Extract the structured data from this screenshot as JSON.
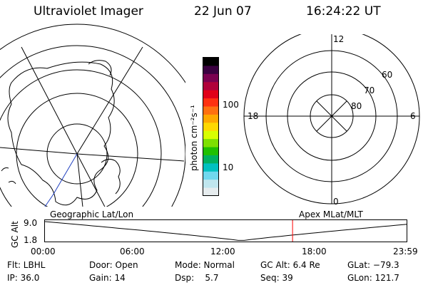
{
  "header": {
    "instrument": "Ultraviolet Imager",
    "date": "22 Jun 07",
    "time": "16:24:22 UT"
  },
  "geo_map": {
    "caption": "Geographic Lat/Lon"
  },
  "polar_plot": {
    "caption": "Apex MLat/MLT",
    "mlt_labels": {
      "top": "12",
      "bottom": "0",
      "left": "18",
      "right": "6"
    },
    "lat_labels": [
      "60",
      "70",
      "80"
    ]
  },
  "colorbar": {
    "unit_label": "photon cm⁻²s⁻¹",
    "tick_labels": [
      "100",
      "10"
    ],
    "colors": [
      "#000000",
      "#3a0040",
      "#7a0050",
      "#b0003a",
      "#e00018",
      "#ff3010",
      "#ff7010",
      "#ffa800",
      "#ffd800",
      "#d8ff00",
      "#7ee000",
      "#20c000",
      "#00b060",
      "#00c0c0",
      "#70d8ee",
      "#c0e6ee",
      "#e6ecee"
    ]
  },
  "altitude_plot": {
    "ylabel": "GC Alt",
    "y_ticks": [
      "9.0",
      "1.8"
    ],
    "x_ticks": [
      "00:00",
      "06:00",
      "12:00",
      "18:00",
      "23:59"
    ],
    "current_time_marker_hours": 16.4,
    "line_color": "#000000",
    "marker_color": "#ff0000"
  },
  "footer": {
    "col1": [
      "Flt: LBHL",
      "IP: 36.0"
    ],
    "col2": [
      "Door: Open",
      "Gain: 14"
    ],
    "col3": [
      "Mode: Normal",
      "Dsp:    5.7"
    ],
    "col4": [
      "GC Alt: 6.4 Re",
      "Seq: 39"
    ],
    "col5": [
      "GLat: −79.3",
      "GLon: 121.7"
    ]
  }
}
